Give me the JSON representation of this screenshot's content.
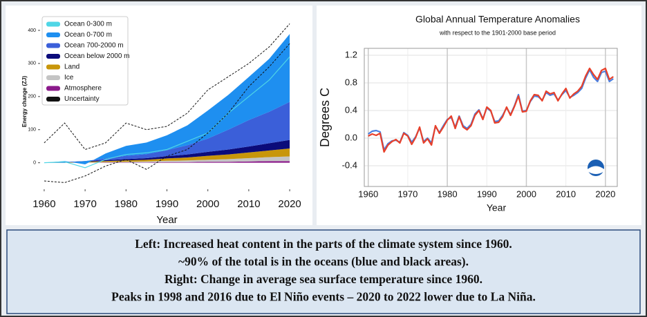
{
  "chart_data": [
    {
      "type": "area",
      "stacked": true,
      "x_label": "Year",
      "y_label": "Energy change (ZJ)",
      "x": [
        1960,
        1965,
        1970,
        1975,
        1980,
        1985,
        1990,
        1995,
        2000,
        2005,
        2010,
        2015,
        2020
      ],
      "xlim": [
        1959,
        2021
      ],
      "xticks": [
        1960,
        1970,
        1980,
        1990,
        2000,
        2010,
        2020
      ],
      "ylim": [
        -80,
        450
      ],
      "yticks": [
        0,
        100,
        200,
        300,
        400
      ],
      "series": [
        {
          "name": "Ocean 0-300 m",
          "color": "#4fd6e6",
          "type": "line",
          "values": [
            0,
            3,
            -15,
            10,
            25,
            30,
            40,
            65,
            90,
            150,
            200,
            250,
            320
          ]
        },
        {
          "name": "Ocean 0-700 m",
          "color": "#1e8ff0",
          "values": [
            0,
            5,
            -10,
            15,
            30,
            35,
            45,
            60,
            85,
            105,
            130,
            160,
            205
          ]
        },
        {
          "name": "Ocean 700-2000 m",
          "color": "#3b5fd9",
          "values": [
            0,
            -2,
            0,
            5,
            10,
            12,
            18,
            28,
            40,
            60,
            80,
            95,
            115
          ]
        },
        {
          "name": "Ocean below 2000 m",
          "color": "#0b0b7a",
          "values": [
            0,
            1,
            2,
            3,
            4,
            5,
            7,
            9,
            12,
            15,
            18,
            22,
            26
          ]
        },
        {
          "name": "Land",
          "color": "#c8960a",
          "values": [
            0,
            1,
            2,
            3,
            4,
            5,
            7,
            9,
            12,
            14,
            17,
            20,
            24
          ]
        },
        {
          "name": "Ice",
          "color": "#c4c4c4",
          "values": [
            0,
            0,
            1,
            1,
            2,
            3,
            4,
            5,
            6,
            8,
            10,
            12,
            14
          ]
        },
        {
          "name": "Atmosphere",
          "color": "#8b1a8b",
          "values": [
            0,
            0,
            0,
            1,
            1,
            1,
            2,
            2,
            3,
            3,
            4,
            5,
            5
          ]
        },
        {
          "name": "Uncertainty",
          "color": "#111111",
          "upper": [
            60,
            120,
            40,
            60,
            120,
            100,
            110,
            150,
            220,
            260,
            300,
            350,
            420
          ],
          "lower": [
            -55,
            -60,
            -40,
            -10,
            10,
            -20,
            20,
            40,
            90,
            150,
            230,
            290,
            360
          ]
        }
      ]
    },
    {
      "type": "line",
      "title": "Global Annual Temperature Anomalies",
      "subtitle": "with respect to the 1901-2000  base period",
      "x_label": "Year",
      "y_label": "Degrees C",
      "grid": true,
      "x": [
        1960,
        1961,
        1962,
        1963,
        1964,
        1965,
        1966,
        1967,
        1968,
        1969,
        1970,
        1971,
        1972,
        1973,
        1974,
        1975,
        1976,
        1977,
        1978,
        1979,
        1980,
        1981,
        1982,
        1983,
        1984,
        1985,
        1986,
        1987,
        1988,
        1989,
        1990,
        1991,
        1992,
        1993,
        1994,
        1995,
        1996,
        1997,
        1998,
        1999,
        2000,
        2001,
        2002,
        2003,
        2004,
        2005,
        2006,
        2007,
        2008,
        2009,
        2010,
        2011,
        2012,
        2013,
        2014,
        2015,
        2016,
        2017,
        2018,
        2019,
        2020,
        2021,
        2022
      ],
      "xlim": [
        1959,
        2023
      ],
      "xticks": [
        1960,
        1970,
        1980,
        1990,
        2000,
        2010,
        2020
      ],
      "ylim": [
        -0.7,
        1.3
      ],
      "yticks": [
        -0.4,
        {
          "value": 0,
          "label": "0.0"
        },
        0.4,
        0.8,
        1.2
      ],
      "series": [
        {
          "color": "#4a7fe0",
          "values": [
            0.06,
            0.1,
            0.11,
            0.09,
            -0.17,
            -0.08,
            -0.04,
            -0.03,
            -0.06,
            0.08,
            0.04,
            -0.06,
            0.02,
            0.15,
            -0.05,
            0.0,
            -0.07,
            0.17,
            0.08,
            0.18,
            0.27,
            0.3,
            0.16,
            0.32,
            0.18,
            0.14,
            0.2,
            0.35,
            0.41,
            0.28,
            0.44,
            0.39,
            0.24,
            0.25,
            0.33,
            0.44,
            0.34,
            0.47,
            0.63,
            0.39,
            0.4,
            0.53,
            0.61,
            0.6,
            0.55,
            0.66,
            0.62,
            0.64,
            0.55,
            0.63,
            0.69,
            0.59,
            0.62,
            0.66,
            0.72,
            0.87,
            0.99,
            0.88,
            0.82,
            0.95,
            0.97,
            0.82,
            0.86
          ]
        },
        {
          "color": "#e8402a",
          "values": [
            0.03,
            0.06,
            0.04,
            0.07,
            -0.2,
            -0.1,
            -0.05,
            -0.02,
            -0.07,
            0.07,
            0.03,
            -0.09,
            0.01,
            0.16,
            -0.07,
            -0.01,
            -0.1,
            0.18,
            0.07,
            0.16,
            0.26,
            0.32,
            0.14,
            0.31,
            0.16,
            0.12,
            0.18,
            0.33,
            0.4,
            0.27,
            0.45,
            0.4,
            0.22,
            0.23,
            0.31,
            0.45,
            0.33,
            0.46,
            0.61,
            0.38,
            0.39,
            0.54,
            0.63,
            0.62,
            0.54,
            0.68,
            0.64,
            0.66,
            0.54,
            0.64,
            0.72,
            0.58,
            0.64,
            0.68,
            0.75,
            0.9,
            1.01,
            0.92,
            0.85,
            0.98,
            1.01,
            0.85,
            0.89
          ]
        }
      ]
    }
  ],
  "caption": [
    "Left: Increased heat content in the parts of the climate system since 1960.",
    "~90% of the total is in the oceans (blue and black areas).",
    "Right: Change in average sea surface temperature since 1960.",
    "Peaks in 1998 and 2016 due to El Niño events – 2020 to 2022 lower due to La Niña."
  ]
}
